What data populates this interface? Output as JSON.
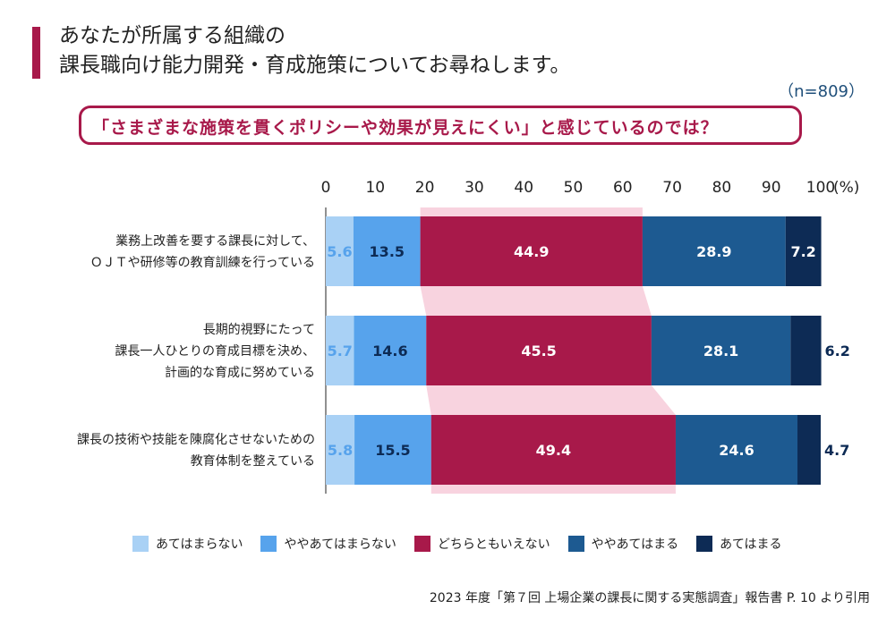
{
  "title": {
    "line1": "あなたが所属する組織の",
    "line2": "課長職向け能力開発・育成施策についてお尋ねします。"
  },
  "n_label": "（n=809）",
  "callout": "「さまざまな施策を貫くポリシーや効果が見えにくい」と感じているのでは？",
  "source": "2023 年度「第７回 上場企業の課長に関する実態調査」報告書 P. 10 より引用",
  "colors": {
    "c1": "#a9d1f5",
    "c2": "#57a3ec",
    "c3": "#a8194a",
    "c4": "#1d5a91",
    "c5": "#0d2b55",
    "highlight": "#f8d3df"
  },
  "chart_data": {
    "type": "bar",
    "orientation": "horizontal-stacked-100",
    "axis_unit": "(%)",
    "xlim": [
      0,
      100
    ],
    "ticks": [
      "0",
      "10",
      "20",
      "30",
      "40",
      "50",
      "60",
      "70",
      "80",
      "90",
      "100"
    ],
    "categories": [
      {
        "lines": [
          "業務上改善を要する課長に対して、",
          "ＯＪＴや研修等の教育訓練を行っている"
        ]
      },
      {
        "lines": [
          "長期的視野にたって",
          "課長一人ひとりの育成目標を決め、",
          "計画的な育成に努めている"
        ]
      },
      {
        "lines": [
          "課長の技術や技能を陳腐化させないための",
          "教育体制を整えている"
        ]
      }
    ],
    "series": [
      {
        "name": "あてはまらない",
        "values": [
          5.6,
          5.7,
          5.8
        ]
      },
      {
        "name": "ややあてはまらない",
        "values": [
          13.5,
          14.6,
          15.5
        ]
      },
      {
        "name": "どちらともいえない",
        "values": [
          44.9,
          45.5,
          49.4
        ]
      },
      {
        "name": "ややあてはまる",
        "values": [
          28.9,
          28.1,
          24.6
        ]
      },
      {
        "name": "あてはまる",
        "values": [
          7.2,
          6.2,
          4.7
        ]
      }
    ],
    "labels": [
      [
        "5.6",
        "13.5",
        "44.9",
        "28.9",
        "7.2"
      ],
      [
        "5.7",
        "14.6",
        "45.5",
        "28.1",
        "6.2"
      ],
      [
        "5.8",
        "15.5",
        "49.4",
        "24.6",
        "4.7"
      ]
    ]
  }
}
